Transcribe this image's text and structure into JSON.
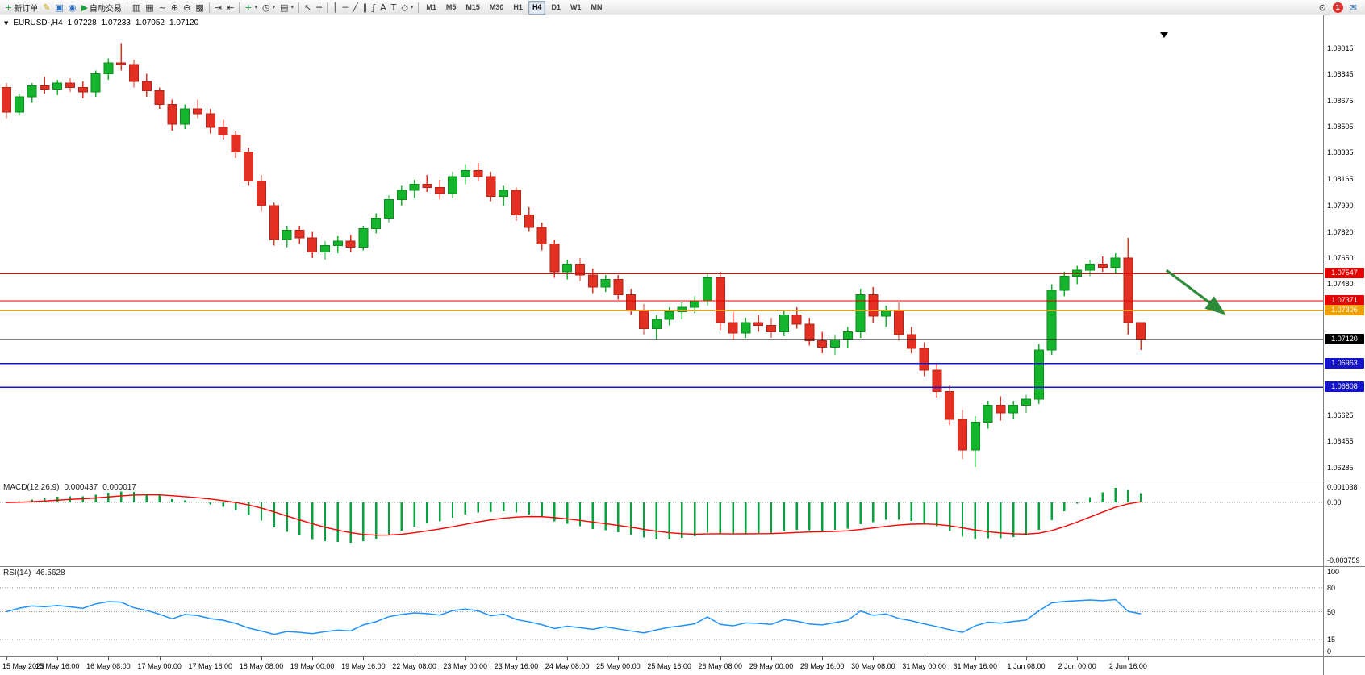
{
  "toolbar": {
    "buttons": [
      {
        "name": "new-order-button",
        "icon": "new-order-icon",
        "glyph": "+",
        "style": "green",
        "label": "新订单"
      },
      {
        "name": "metaeditor-button",
        "icon": "metaeditor-icon",
        "glyph": "✎",
        "style": "yellow"
      },
      {
        "name": "print-button",
        "icon": "print-icon",
        "glyph": "▣",
        "style": "blue"
      },
      {
        "name": "community-button",
        "icon": "community-icon",
        "glyph": "◉",
        "style": "blue"
      },
      {
        "name": "auto-trading-button",
        "icon": "auto-trading-icon",
        "glyph": "▶",
        "style": "green",
        "label": "自动交易"
      },
      {
        "sep": true
      },
      {
        "name": "bar-chart-button",
        "icon": "bar-chart-icon",
        "glyph": "▥"
      },
      {
        "name": "candlestick-chart-button",
        "icon": "candlestick-chart-icon",
        "glyph": "▦"
      },
      {
        "name": "line-chart-button",
        "icon": "line-chart-icon",
        "glyph": "~"
      },
      {
        "name": "zoom-in-button",
        "icon": "zoom-in-icon",
        "glyph": "⊕"
      },
      {
        "name": "zoom-out-button",
        "icon": "zoom-out-icon",
        "glyph": "⊖"
      },
      {
        "name": "tile-windows-button",
        "icon": "tile-windows-icon",
        "glyph": "▩"
      },
      {
        "sep": true
      },
      {
        "name": "auto-scroll-button",
        "icon": "auto-scroll-icon",
        "glyph": "⇥"
      },
      {
        "name": "chart-shift-button",
        "icon": "chart-shift-icon",
        "glyph": "⇤"
      },
      {
        "sep": true
      },
      {
        "name": "indicators-button",
        "icon": "indicators-icon",
        "glyph": "+",
        "style": "green",
        "dd": true
      },
      {
        "name": "periods-button",
        "icon": "periods-icon",
        "glyph": "◷",
        "dd": true
      },
      {
        "name": "templates-button",
        "icon": "templates-icon",
        "glyph": "▤",
        "dd": true
      },
      {
        "sep": true
      },
      {
        "name": "cursor-button",
        "icon": "cursor-icon",
        "glyph": "↖"
      },
      {
        "name": "crosshair-button",
        "icon": "crosshair-icon",
        "glyph": "┼"
      },
      {
        "sep": true
      },
      {
        "name": "vertical-line-button",
        "icon": "vertical-line-icon",
        "glyph": "│"
      },
      {
        "name": "horizontal-line-button",
        "icon": "horizontal-line-icon",
        "glyph": "─"
      },
      {
        "name": "trendline-button",
        "icon": "trendline-icon",
        "glyph": "╱"
      },
      {
        "name": "channel-button",
        "icon": "channel-icon",
        "glyph": "∥"
      },
      {
        "name": "fibonacci-button",
        "icon": "fibonacci-icon",
        "glyph": "ƒ"
      },
      {
        "name": "text-button",
        "icon": "text-icon",
        "glyph": "A"
      },
      {
        "name": "label-button",
        "icon": "label-icon",
        "glyph": "T"
      },
      {
        "name": "shapes-button",
        "icon": "shapes-icon",
        "glyph": "◇",
        "dd": true
      },
      {
        "sep": true
      }
    ],
    "timeframes": [
      "M1",
      "M5",
      "M15",
      "M30",
      "H1",
      "H4",
      "D1",
      "W1",
      "MN"
    ],
    "active_timeframe": "H4",
    "right": [
      {
        "name": "search-button",
        "icon": "search-icon",
        "glyph": "⊙"
      },
      {
        "name": "notification-badge",
        "label": "1",
        "badge": true
      },
      {
        "name": "chat-button",
        "icon": "chat-icon",
        "glyph": "✉",
        "style": "blue"
      }
    ]
  },
  "chart": {
    "symbol": "EURUSD-,H4",
    "ohlc": {
      "open": "1.07228",
      "high": "1.07233",
      "low": "1.07052",
      "close": "1.07120"
    },
    "price_min": 1.062,
    "price_max": 1.0923,
    "axis_ticks": [
      "1.09015",
      "1.08845",
      "1.08675",
      "1.08505",
      "1.08335",
      "1.08165",
      "1.07990",
      "1.07820",
      "1.07650",
      "1.07480",
      "1.07310",
      "1.06625",
      "1.06455",
      "1.06285"
    ],
    "hlines": [
      {
        "price": 1.07547,
        "label": "1.07547",
        "color": "#e60000",
        "width": 1.3
      },
      {
        "price": 1.07371,
        "label": "1.07371",
        "color": "#e60000",
        "width": 1.3
      },
      {
        "price": 1.07306,
        "label": "1.07306",
        "color": "#f0a000",
        "width": 1.6
      },
      {
        "price": 1.0712,
        "label": "1.07120",
        "color": "#000000",
        "width": 1.1
      },
      {
        "price": 1.06963,
        "label": "1.06963",
        "color": "#1414cc",
        "width": 1.6
      },
      {
        "price": 1.06808,
        "label": "1.06808",
        "color": "#1414cc",
        "width": 1.6
      }
    ],
    "candles": [
      [
        1.0876,
        1.0879,
        1.0856,
        1.086
      ],
      [
        1.086,
        1.0872,
        1.0858,
        1.087
      ],
      [
        1.087,
        1.0879,
        1.0866,
        1.0877
      ],
      [
        1.0877,
        1.0883,
        1.0872,
        1.0875
      ],
      [
        1.0875,
        1.0881,
        1.0871,
        1.0879
      ],
      [
        1.0879,
        1.0882,
        1.0873,
        1.0876
      ],
      [
        1.0876,
        1.088,
        1.0869,
        1.0873
      ],
      [
        1.0873,
        1.0887,
        1.087,
        1.0885
      ],
      [
        1.0885,
        1.0895,
        1.0881,
        1.0892
      ],
      [
        1.0892,
        1.0905,
        1.0887,
        1.0891
      ],
      [
        1.0891,
        1.0894,
        1.0876,
        1.088
      ],
      [
        1.088,
        1.0885,
        1.087,
        1.0874
      ],
      [
        1.0874,
        1.0876,
        1.0862,
        1.0865
      ],
      [
        1.0865,
        1.0868,
        1.0848,
        1.0852
      ],
      [
        1.0852,
        1.0865,
        1.0849,
        1.0862
      ],
      [
        1.0862,
        1.0868,
        1.0856,
        1.0859
      ],
      [
        1.0859,
        1.0862,
        1.0846,
        1.085
      ],
      [
        1.085,
        1.0855,
        1.0842,
        1.0845
      ],
      [
        1.0845,
        1.0848,
        1.083,
        1.0834
      ],
      [
        1.0834,
        1.0837,
        1.0812,
        1.0815
      ],
      [
        1.0815,
        1.0819,
        1.0795,
        1.0799
      ],
      [
        1.0799,
        1.0801,
        1.0773,
        1.0777
      ],
      [
        1.0777,
        1.0786,
        1.0772,
        1.0783
      ],
      [
        1.0783,
        1.0786,
        1.0774,
        1.0778
      ],
      [
        1.0778,
        1.0782,
        1.0765,
        1.0769
      ],
      [
        1.0769,
        1.0776,
        1.0764,
        1.0773
      ],
      [
        1.0773,
        1.0779,
        1.0768,
        1.0776
      ],
      [
        1.0776,
        1.078,
        1.0769,
        1.0772
      ],
      [
        1.0772,
        1.0786,
        1.077,
        1.0784
      ],
      [
        1.0784,
        1.0794,
        1.0781,
        1.0791
      ],
      [
        1.0791,
        1.0806,
        1.0788,
        1.0803
      ],
      [
        1.0803,
        1.0812,
        1.0799,
        1.0809
      ],
      [
        1.0809,
        1.0816,
        1.0804,
        1.0813
      ],
      [
        1.0813,
        1.0819,
        1.0808,
        1.0811
      ],
      [
        1.0811,
        1.0816,
        1.0803,
        1.0807
      ],
      [
        1.0807,
        1.0821,
        1.0804,
        1.0818
      ],
      [
        1.0818,
        1.0826,
        1.0813,
        1.0822
      ],
      [
        1.0822,
        1.0827,
        1.0815,
        1.0818
      ],
      [
        1.0818,
        1.0821,
        1.0802,
        1.0805
      ],
      [
        1.0805,
        1.0812,
        1.0799,
        1.0809
      ],
      [
        1.0809,
        1.0811,
        1.0789,
        1.0793
      ],
      [
        1.0793,
        1.0798,
        1.0782,
        1.0785
      ],
      [
        1.0785,
        1.0788,
        1.077,
        1.0774
      ],
      [
        1.0774,
        1.0777,
        1.0752,
        1.0756
      ],
      [
        1.0756,
        1.0764,
        1.0751,
        1.0761
      ],
      [
        1.0761,
        1.0765,
        1.075,
        1.0754
      ],
      [
        1.0754,
        1.0758,
        1.0742,
        1.0746
      ],
      [
        1.0746,
        1.0754,
        1.0743,
        1.0751
      ],
      [
        1.0751,
        1.0754,
        1.0738,
        1.0741
      ],
      [
        1.0741,
        1.0745,
        1.0728,
        1.0731
      ],
      [
        1.0731,
        1.0735,
        1.0715,
        1.0719
      ],
      [
        1.0719,
        1.0728,
        1.0712,
        1.0725
      ],
      [
        1.0725,
        1.0733,
        1.0721,
        1.073
      ],
      [
        1.073,
        1.0736,
        1.0725,
        1.0733
      ],
      [
        1.0733,
        1.074,
        1.0729,
        1.0737
      ],
      [
        1.0737,
        1.0755,
        1.0734,
        1.0752
      ],
      [
        1.0752,
        1.0756,
        1.0718,
        1.0723
      ],
      [
        1.0723,
        1.073,
        1.0712,
        1.0716
      ],
      [
        1.0716,
        1.0726,
        1.0713,
        1.0723
      ],
      [
        1.0723,
        1.0728,
        1.0717,
        1.0721
      ],
      [
        1.0721,
        1.0726,
        1.0713,
        1.0717
      ],
      [
        1.0717,
        1.0731,
        1.0714,
        1.0728
      ],
      [
        1.0728,
        1.0733,
        1.0719,
        1.0722
      ],
      [
        1.0722,
        1.0726,
        1.0708,
        1.0711
      ],
      [
        1.0711,
        1.0717,
        1.0703,
        1.0707
      ],
      [
        1.0707,
        1.0715,
        1.0702,
        1.0712
      ],
      [
        1.0712,
        1.072,
        1.0706,
        1.0717
      ],
      [
        1.0717,
        1.0745,
        1.0713,
        1.0741
      ],
      [
        1.0741,
        1.0746,
        1.0723,
        1.0727
      ],
      [
        1.0727,
        1.0734,
        1.072,
        1.0731
      ],
      [
        1.0731,
        1.0736,
        1.0711,
        1.0715
      ],
      [
        1.0715,
        1.072,
        1.0703,
        1.0706
      ],
      [
        1.0706,
        1.071,
        1.0688,
        1.0692
      ],
      [
        1.0692,
        1.0696,
        1.0674,
        1.0678
      ],
      [
        1.0678,
        1.0682,
        1.0656,
        1.066
      ],
      [
        1.066,
        1.0666,
        1.0634,
        1.064
      ],
      [
        1.064,
        1.0662,
        1.0629,
        1.0658
      ],
      [
        1.0658,
        1.0672,
        1.0654,
        1.0669
      ],
      [
        1.0669,
        1.0675,
        1.0659,
        1.0664
      ],
      [
        1.0664,
        1.0672,
        1.066,
        1.0669
      ],
      [
        1.0669,
        1.0676,
        1.0664,
        1.0673
      ],
      [
        1.0673,
        1.0709,
        1.067,
        1.0705
      ],
      [
        1.0705,
        1.0748,
        1.0702,
        1.0744
      ],
      [
        1.0744,
        1.0756,
        1.074,
        1.0753
      ],
      [
        1.0753,
        1.076,
        1.0748,
        1.0757
      ],
      [
        1.0757,
        1.0764,
        1.0753,
        1.0761
      ],
      [
        1.0761,
        1.0766,
        1.0756,
        1.0759
      ],
      [
        1.0759,
        1.0768,
        1.0755,
        1.0765
      ],
      [
        1.0765,
        1.0778,
        1.0715,
        1.07228
      ],
      [
        1.07228,
        1.07233,
        1.07052,
        1.0712
      ]
    ],
    "time_labels": [
      {
        "i": 0,
        "label": "15 May 2023"
      },
      {
        "i": 4,
        "label": "15 May 16:00"
      },
      {
        "i": 8,
        "label": "16 May 08:00"
      },
      {
        "i": 12,
        "label": "17 May 00:00"
      },
      {
        "i": 16,
        "label": "17 May 16:00"
      },
      {
        "i": 20,
        "label": "18 May 08:00"
      },
      {
        "i": 24,
        "label": "19 May 00:00"
      },
      {
        "i": 28,
        "label": "19 May 16:00"
      },
      {
        "i": 32,
        "label": "22 May 08:00"
      },
      {
        "i": 36,
        "label": "23 May 00:00"
      },
      {
        "i": 40,
        "label": "23 May 16:00"
      },
      {
        "i": 44,
        "label": "24 May 08:00"
      },
      {
        "i": 48,
        "label": "25 May 00:00"
      },
      {
        "i": 52,
        "label": "25 May 16:00"
      },
      {
        "i": 56,
        "label": "26 May 08:00"
      },
      {
        "i": 60,
        "label": "29 May 00:00"
      },
      {
        "i": 64,
        "label": "29 May 16:00"
      },
      {
        "i": 68,
        "label": "30 May 08:00"
      },
      {
        "i": 72,
        "label": "31 May 00:00"
      },
      {
        "i": 76,
        "label": "31 May 16:00"
      },
      {
        "i": 80,
        "label": "1 Jun 08:00"
      },
      {
        "i": 84,
        "label": "2 Jun 00:00"
      },
      {
        "i": 88,
        "label": "2 Jun 16:00"
      }
    ],
    "arrow": {
      "from_bar": 91,
      "from_price": 1.0757,
      "to_bar": 95.5,
      "to_price": 1.0729
    },
    "colors": {
      "up": "#12b52b",
      "up_border": "#0d8a20",
      "down": "#e33022",
      "down_border": "#b2251a",
      "macd_hist": "#00a33c",
      "macd_signal": "#ff0000",
      "rsi_line": "#1e90ff",
      "arrow": "#2e8b3a"
    }
  },
  "macd": {
    "name": "MACD(12,26,9)",
    "value_main": "0.000437",
    "value_signal": "0.000017",
    "axis_top": "0.001038",
    "axis_zero": "0.00",
    "axis_bottom": "-0.003759",
    "scale_max": 0.001038,
    "scale_min": -0.003759
  },
  "rsi": {
    "name": "RSI(14)",
    "value": "46.5628",
    "axis": [
      {
        "v": 100,
        "label": "100"
      },
      {
        "v": 80,
        "label": "80"
      },
      {
        "v": 50,
        "label": "50"
      },
      {
        "v": 15,
        "label": "15"
      },
      {
        "v": 0,
        "label": "0"
      }
    ],
    "levels": [
      80,
      50,
      15
    ]
  }
}
